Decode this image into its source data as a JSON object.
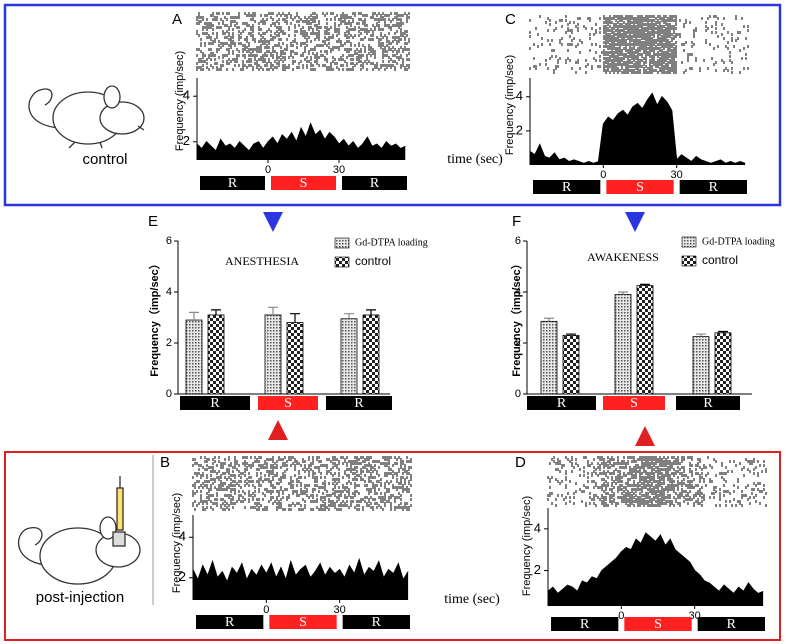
{
  "rows": [
    {
      "label": "control"
    },
    {
      "label": "post-injection"
    }
  ],
  "chart_data": [
    {
      "type": "area",
      "panel": "A",
      "y_label": "Frequency (imp/sec)",
      "x_label": "time (sec)",
      "xlim": [
        -30,
        60
      ],
      "xticks": [
        0,
        30
      ],
      "ylim": [
        1.2,
        4.8
      ],
      "yticks": [
        2,
        4
      ],
      "color": "#000000",
      "phases": [
        "R",
        "S",
        "R"
      ],
      "phase_colors": [
        "#000000",
        "#ff2020",
        "#000000"
      ],
      "x": [
        -30,
        -28,
        -26,
        -24,
        -22,
        -20,
        -18,
        -16,
        -14,
        -12,
        -10,
        -8,
        -6,
        -4,
        -2,
        0,
        2,
        4,
        6,
        8,
        10,
        12,
        14,
        16,
        18,
        20,
        22,
        24,
        26,
        28,
        30,
        32,
        34,
        36,
        38,
        40,
        42,
        44,
        46,
        48,
        50,
        52,
        54,
        56,
        58
      ],
      "values": [
        1.9,
        1.7,
        2.0,
        1.8,
        1.6,
        2.1,
        1.8,
        1.9,
        1.7,
        2.0,
        1.8,
        1.6,
        1.9,
        2.0,
        1.7,
        2.0,
        2.2,
        1.9,
        2.3,
        2.1,
        2.4,
        2.0,
        2.6,
        2.2,
        2.8,
        2.3,
        2.5,
        2.1,
        2.4,
        2.2,
        1.9,
        2.1,
        1.8,
        2.0,
        1.7,
        1.9,
        2.2,
        1.8,
        1.9,
        1.7,
        2.0,
        1.8,
        1.9,
        1.7,
        1.8
      ]
    },
    {
      "type": "area",
      "panel": "B",
      "y_label": "Frequency (imp/sec)",
      "x_label": "time (sec)",
      "xlim": [
        -30,
        60
      ],
      "xticks": [
        0,
        30
      ],
      "ylim": [
        0.9,
        5.1
      ],
      "yticks": [
        2,
        4
      ],
      "color": "#000000",
      "phases": [
        "R",
        "S",
        "R"
      ],
      "phase_colors": [
        "#000000",
        "#ff2020",
        "#000000"
      ],
      "x": [
        -30,
        -28,
        -26,
        -24,
        -22,
        -20,
        -18,
        -16,
        -14,
        -12,
        -10,
        -8,
        -6,
        -4,
        -2,
        0,
        2,
        4,
        6,
        8,
        10,
        12,
        14,
        16,
        18,
        20,
        22,
        24,
        26,
        28,
        30,
        32,
        34,
        36,
        38,
        40,
        42,
        44,
        46,
        48,
        50,
        52,
        54,
        56,
        58
      ],
      "values": [
        2.4,
        1.9,
        2.6,
        2.1,
        2.8,
        2.0,
        2.3,
        1.8,
        2.5,
        2.2,
        2.7,
        1.9,
        2.4,
        2.1,
        2.6,
        2.2,
        2.7,
        2.0,
        2.5,
        1.9,
        2.8,
        2.1,
        2.4,
        2.6,
        2.0,
        2.3,
        2.7,
        2.1,
        2.5,
        2.2,
        2.4,
        2.0,
        2.6,
        2.2,
        2.9,
        2.1,
        2.5,
        2.3,
        2.8,
        2.0,
        2.4,
        2.2,
        2.7,
        1.9,
        2.3
      ]
    },
    {
      "type": "area",
      "panel": "C",
      "y_label": "Frequency (imp/sec)",
      "xlim": [
        -30,
        60
      ],
      "xticks": [
        0,
        30
      ],
      "ylim": [
        0,
        5.1
      ],
      "yticks": [
        2,
        4
      ],
      "color": "#000000",
      "phases": [
        "R",
        "S",
        "R"
      ],
      "phase_colors": [
        "#000000",
        "#ff2020",
        "#000000"
      ],
      "x": [
        -30,
        -28,
        -26,
        -24,
        -22,
        -20,
        -18,
        -16,
        -14,
        -12,
        -10,
        -8,
        -6,
        -4,
        -2,
        0,
        2,
        4,
        6,
        8,
        10,
        12,
        14,
        16,
        18,
        20,
        22,
        24,
        26,
        28,
        30,
        32,
        34,
        36,
        38,
        40,
        42,
        44,
        46,
        48,
        50,
        52,
        54,
        56,
        58
      ],
      "values": [
        0.8,
        0.6,
        1.2,
        0.5,
        0.4,
        0.7,
        0.3,
        0.4,
        0.2,
        0.3,
        0.2,
        0.1,
        0.2,
        0.1,
        0.2,
        2.4,
        2.8,
        2.6,
        3.0,
        3.2,
        2.9,
        3.4,
        3.6,
        3.3,
        3.8,
        4.2,
        3.5,
        4.0,
        3.7,
        3.2,
        0.3,
        0.6,
        0.4,
        0.2,
        0.5,
        0.3,
        0.2,
        0.1,
        0.2,
        0.3,
        0.1,
        0.2,
        0.1,
        0.2,
        0.1
      ]
    },
    {
      "type": "area",
      "panel": "D",
      "y_label": "Frequency (imp/sec)",
      "xlim": [
        -30,
        60
      ],
      "xticks": [
        0,
        30
      ],
      "ylim": [
        0.3,
        5
      ],
      "yticks": [
        2,
        4
      ],
      "color": "#000000",
      "phases": [
        "R",
        "S",
        "R"
      ],
      "phase_colors": [
        "#000000",
        "#ff2020",
        "#000000"
      ],
      "x": [
        -30,
        -28,
        -26,
        -24,
        -22,
        -20,
        -18,
        -16,
        -14,
        -12,
        -10,
        -8,
        -6,
        -4,
        -2,
        0,
        2,
        4,
        6,
        8,
        10,
        12,
        14,
        16,
        18,
        20,
        22,
        24,
        26,
        28,
        30,
        32,
        34,
        36,
        38,
        40,
        42,
        44,
        46,
        48,
        50,
        52,
        54,
        56,
        58
      ],
      "values": [
        1.0,
        1.2,
        0.9,
        1.1,
        1.3,
        1.2,
        1.0,
        1.5,
        1.4,
        1.7,
        1.6,
        2.0,
        2.2,
        2.4,
        2.6,
        2.9,
        3.1,
        3.0,
        3.5,
        3.3,
        3.8,
        3.6,
        3.4,
        3.7,
        3.2,
        3.5,
        3.0,
        2.8,
        2.6,
        2.4,
        2.0,
        1.8,
        1.5,
        1.4,
        1.2,
        1.0,
        1.3,
        1.1,
        0.9,
        1.2,
        1.0,
        1.4,
        1.1,
        0.9,
        1.0
      ]
    },
    {
      "type": "bar",
      "panel": "E",
      "title": "ANESTHESIA",
      "y_label": "Frequency（imp/sec）",
      "ylim": [
        0,
        6
      ],
      "yticks": [
        0,
        2,
        4,
        6
      ],
      "categories": [
        "R",
        "S",
        "R"
      ],
      "category_colors": [
        "#000000",
        "#ff2020",
        "#000000"
      ],
      "series": [
        {
          "name": "Gd-DTPA loading",
          "color": "#8a8a8a",
          "values": [
            2.9,
            3.1,
            2.95
          ],
          "errors": [
            0.3,
            0.3,
            0.2
          ]
        },
        {
          "name": "control",
          "color": "#000000",
          "values": [
            3.1,
            2.8,
            3.1
          ],
          "errors": [
            0.2,
            0.35,
            0.2
          ]
        }
      ]
    },
    {
      "type": "bar",
      "panel": "F",
      "title": "AWAKENESS",
      "y_label": "Frequency（imp/sec）",
      "ylim": [
        0,
        6
      ],
      "yticks": [
        0,
        2,
        4,
        6
      ],
      "categories": [
        "R",
        "S",
        "R"
      ],
      "category_colors": [
        "#000000",
        "#ff2020",
        "#000000"
      ],
      "series": [
        {
          "name": "Gd-DTPA loading",
          "color": "#8a8a8a",
          "values": [
            2.85,
            3.9,
            2.25
          ],
          "errors": [
            0.12,
            0.1,
            0.1
          ]
        },
        {
          "name": "control",
          "color": "#000000",
          "values": [
            2.3,
            4.25,
            2.4
          ],
          "errors": [
            0.05,
            0.05,
            0.05
          ]
        }
      ]
    }
  ]
}
